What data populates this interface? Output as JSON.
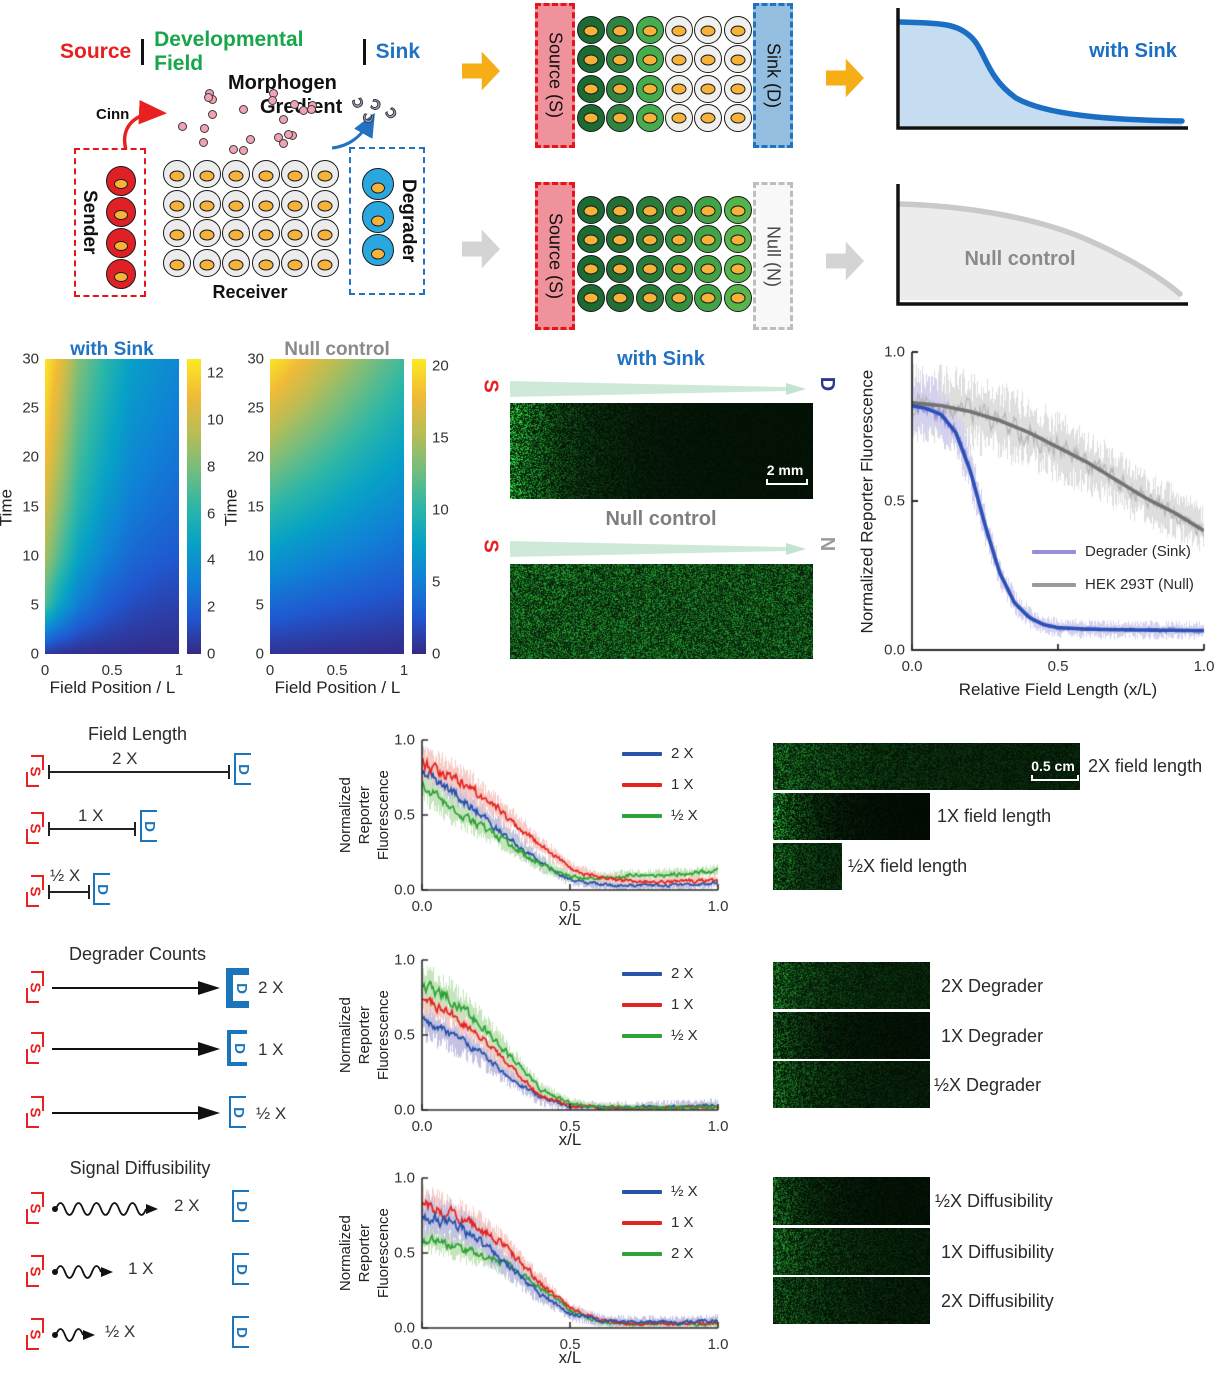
{
  "header": {
    "source": "Source",
    "field": "Developmental Field",
    "sink": "Sink",
    "source_color": "#e8201f",
    "field_color": "#17a64a",
    "sink_color": "#2272c3"
  },
  "schematic": {
    "morphogen_line1": "Morphogen",
    "morphogen_line2": "Gredient",
    "cinn": "Cinn",
    "sender": "Sender",
    "receiver": "Receiver",
    "degrader": "Degrader",
    "morphogen_dot_count": 22,
    "degrader_particle_count": 4,
    "sender_cell_count": 4,
    "degrader_cell_count": 3,
    "receiver_grid": {
      "cols": 6,
      "rows": 4
    }
  },
  "assay": {
    "rows": [
      {
        "source": "Source (S)",
        "right": "Sink (D)",
        "right_style": "sink",
        "cell_colors": [
          "#1b6b33",
          "#2e8440",
          "#46ad4e",
          "#f0f0ee",
          "#f0f0ee",
          "#f0f0ee"
        ]
      },
      {
        "source": "Source (S)",
        "right": "Null (N)",
        "right_style": "null",
        "cell_colors": [
          "#1b6b33",
          "#226f35",
          "#2a7c3a",
          "#349040",
          "#42a246",
          "#55b44c"
        ]
      }
    ]
  },
  "sketch": {
    "with_sink": "with Sink",
    "null_control": "Null control"
  },
  "microscopy": {
    "panels": [
      {
        "title": "with Sink",
        "left": "S",
        "right": "D",
        "scalebar": "2 mm"
      },
      {
        "title": "Null control",
        "left": "S",
        "right": "N",
        "scalebar": ""
      }
    ]
  },
  "sections": [
    {
      "title": "Field Length",
      "rows": [
        "2 X",
        "1 X",
        "½ X"
      ],
      "images": [
        {
          "label": "2X field length",
          "scalebar": "0.5 cm"
        },
        {
          "label": "1X field length",
          "scalebar": ""
        },
        {
          "label": "½X field length",
          "scalebar": ""
        }
      ]
    },
    {
      "title": "Degrader Counts",
      "rows": [
        "2 X",
        "1 X",
        "½ X"
      ],
      "images": [
        {
          "label": "2X Degrader",
          "scalebar": ""
        },
        {
          "label": "1X Degrader",
          "scalebar": ""
        },
        {
          "label": "½X Degrader",
          "scalebar": ""
        }
      ]
    },
    {
      "title": "Signal Diffusibility",
      "rows": [
        "2 X",
        "1 X",
        "½ X"
      ],
      "images": [
        {
          "label": "½X Diffusibility",
          "scalebar": ""
        },
        {
          "label": "1X Diffusibility",
          "scalebar": ""
        },
        {
          "label": "2X Diffusibility",
          "scalebar": ""
        }
      ]
    }
  ],
  "chart_data": [
    {
      "type": "heatmap",
      "title": "with Sink",
      "xlabel": "Field Position / L",
      "ylabel": "Time",
      "xticks": [
        "0",
        "0.5",
        "1"
      ],
      "yticks": [
        "0",
        "5",
        "10",
        "15",
        "20",
        "25",
        "30"
      ],
      "colorbar_ticks": [
        "0",
        "2",
        "4",
        "6",
        "8",
        "10",
        "12"
      ],
      "xlim": [
        0,
        1
      ],
      "ylim": [
        0,
        30
      ],
      "vmax": 12.6,
      "colormap": "parula",
      "x": [
        0,
        0.1,
        0.25,
        0.45,
        0.65,
        0.85,
        1
      ],
      "t": [
        0,
        5,
        10,
        15,
        20,
        25,
        30
      ],
      "values": [
        [
          0.5,
          0.3,
          0.2,
          0.15,
          0.1,
          0.1,
          0.1
        ],
        [
          7.0,
          5.0,
          3.0,
          1.8,
          1.2,
          0.9,
          0.8
        ],
        [
          9.0,
          7.2,
          4.8,
          3.2,
          2.2,
          1.8,
          1.6
        ],
        [
          10.2,
          8.4,
          6.0,
          4.2,
          3.0,
          2.5,
          2.2
        ],
        [
          11.2,
          9.4,
          6.8,
          5.0,
          3.6,
          3.0,
          2.7
        ],
        [
          11.9,
          10.2,
          7.5,
          5.6,
          4.1,
          3.5,
          3.1
        ],
        [
          12.5,
          11.0,
          8.2,
          6.2,
          4.6,
          3.9,
          3.5
        ]
      ]
    },
    {
      "type": "heatmap",
      "title": "Null control",
      "xlabel": "Field Position / L",
      "ylabel": "Time",
      "xticks": [
        "0",
        "0.5",
        "1"
      ],
      "yticks": [
        "0",
        "5",
        "10",
        "15",
        "20",
        "25",
        "30"
      ],
      "colorbar_ticks": [
        "0",
        "5",
        "10",
        "15",
        "20"
      ],
      "xlim": [
        0,
        1
      ],
      "ylim": [
        0,
        30
      ],
      "vmax": 20.5,
      "colormap": "parula",
      "x": [
        0,
        0.2,
        0.4,
        0.6,
        0.8,
        1
      ],
      "t": [
        0,
        5,
        10,
        15,
        20,
        25,
        30
      ],
      "values": [
        [
          0.5,
          0.4,
          0.3,
          0.2,
          0.2,
          0.1
        ],
        [
          3.6,
          3.2,
          2.8,
          2.5,
          2.2,
          1.9
        ],
        [
          7.0,
          6.2,
          5.5,
          4.9,
          4.3,
          3.8
        ],
        [
          10.4,
          9.3,
          8.3,
          7.3,
          6.4,
          5.6
        ],
        [
          13.7,
          12.3,
          11.0,
          9.7,
          8.5,
          7.4
        ],
        [
          17.0,
          15.3,
          13.7,
          12.1,
          10.6,
          9.2
        ],
        [
          20.3,
          18.3,
          16.3,
          14.5,
          12.7,
          11.0
        ]
      ]
    },
    {
      "type": "line",
      "seed": 42,
      "xlabel": "Relative Field Length (x/L)",
      "ylabel": "Normalized Reporter Fluorescence",
      "xlim": [
        0,
        1
      ],
      "ylim": [
        0,
        1
      ],
      "xticks": [
        "0.0",
        "0.5",
        "1.0"
      ],
      "yticks": [
        "0.0",
        "0.5",
        "1.0"
      ],
      "series": [
        {
          "name": "HEK 293T (Null)",
          "legend_row": 1,
          "color": "#737373",
          "noise_color": "#b8b8b8",
          "band_color": "#dedede",
          "legend_color": "#9a9a9a",
          "smooth": true,
          "band_amp": 0.12,
          "line_amp": 0.05,
          "x": [
            0,
            0.1,
            0.2,
            0.3,
            0.4,
            0.5,
            0.6,
            0.7,
            0.8,
            0.9,
            1.0
          ],
          "y": [
            0.83,
            0.82,
            0.8,
            0.77,
            0.73,
            0.68,
            0.63,
            0.57,
            0.51,
            0.46,
            0.4
          ]
        },
        {
          "name": "Degrader (Sink)",
          "legend_row": 0,
          "color": "#2b50b5",
          "noise_color": "#9690d8",
          "band_color": "#d4d1ef",
          "legend_color": "#9690d8",
          "smooth": true,
          "band_amp": 0.1,
          "line_amp": 0.035,
          "x": [
            0,
            0.05,
            0.1,
            0.15,
            0.2,
            0.25,
            0.3,
            0.35,
            0.4,
            0.45,
            0.5,
            0.6,
            0.7,
            0.8,
            0.9,
            1.0
          ],
          "y": [
            0.82,
            0.81,
            0.79,
            0.73,
            0.6,
            0.42,
            0.26,
            0.16,
            0.11,
            0.085,
            0.075,
            0.07,
            0.068,
            0.067,
            0.066,
            0.065
          ]
        }
      ]
    },
    {
      "type": "line",
      "seed": 7,
      "xlabel": "x/L",
      "ylabel": "Normalized\nReporter\nFluorescence",
      "xlim": [
        0,
        1
      ],
      "ylim": [
        0,
        1
      ],
      "xticks": [
        "0.0",
        "0.5",
        "1.0"
      ],
      "yticks": [
        "0.0",
        "0.5",
        "1.0"
      ],
      "series": [
        {
          "name": "2 X",
          "legend_row": 0,
          "color": "#2953a8",
          "band_color": "#c3c2e2",
          "band_amp": 0.14,
          "line_amp": 0.05,
          "x": [
            0,
            0.1,
            0.2,
            0.3,
            0.4,
            0.5,
            0.6,
            0.7,
            0.8,
            0.9,
            1.0
          ],
          "y": [
            0.8,
            0.66,
            0.5,
            0.34,
            0.18,
            0.07,
            0.035,
            0.03,
            0.03,
            0.035,
            0.05
          ]
        },
        {
          "name": "½ X",
          "legend_row": 2,
          "color": "#2fa337",
          "band_color": "#c6e5bc",
          "band_amp": 0.13,
          "line_amp": 0.05,
          "x": [
            0,
            0.1,
            0.2,
            0.3,
            0.4,
            0.5,
            0.6,
            0.7,
            0.8,
            0.9,
            1.0
          ],
          "y": [
            0.7,
            0.54,
            0.42,
            0.3,
            0.17,
            0.09,
            0.08,
            0.095,
            0.1,
            0.11,
            0.13
          ]
        },
        {
          "name": "1 X",
          "legend_row": 1,
          "color": "#e22521",
          "band_color": "#f7cbc6",
          "band_amp": 0.12,
          "line_amp": 0.05,
          "x": [
            0,
            0.1,
            0.2,
            0.3,
            0.4,
            0.5,
            0.6,
            0.7,
            0.8,
            0.9,
            1.0
          ],
          "y": [
            0.85,
            0.76,
            0.63,
            0.47,
            0.3,
            0.15,
            0.08,
            0.06,
            0.055,
            0.06,
            0.065
          ]
        }
      ]
    },
    {
      "type": "line",
      "seed": 13,
      "xlabel": "x/L",
      "ylabel": "Normalized\nReporter\nFluorescence",
      "xlim": [
        0,
        1
      ],
      "ylim": [
        0,
        1
      ],
      "xticks": [
        "0.0",
        "0.5",
        "1.0"
      ],
      "yticks": [
        "0.0",
        "0.5",
        "1.0"
      ],
      "series": [
        {
          "name": "2 X",
          "legend_row": 0,
          "color": "#2953a8",
          "band_color": "#c3c2e2",
          "band_amp": 0.17,
          "line_amp": 0.05,
          "x": [
            0,
            0.1,
            0.2,
            0.3,
            0.4,
            0.5,
            0.6,
            0.7,
            0.8,
            0.9,
            1.0
          ],
          "y": [
            0.6,
            0.5,
            0.38,
            0.22,
            0.08,
            0.025,
            0.015,
            0.015,
            0.02,
            0.025,
            0.035
          ]
        },
        {
          "name": "1 X",
          "legend_row": 1,
          "color": "#e22521",
          "band_color": "#f7cbc6",
          "band_amp": 0.11,
          "line_amp": 0.05,
          "x": [
            0,
            0.1,
            0.2,
            0.3,
            0.4,
            0.5,
            0.6,
            0.7,
            0.8,
            0.9,
            1.0
          ],
          "y": [
            0.74,
            0.64,
            0.48,
            0.28,
            0.1,
            0.03,
            0.015,
            0.012,
            0.012,
            0.015,
            0.02
          ]
        },
        {
          "name": "½ X",
          "legend_row": 2,
          "color": "#2fa337",
          "band_color": "#c6e5bc",
          "band_amp": 0.13,
          "line_amp": 0.05,
          "x": [
            0,
            0.1,
            0.2,
            0.3,
            0.4,
            0.5,
            0.6,
            0.7,
            0.8,
            0.9,
            1.0
          ],
          "y": [
            0.84,
            0.74,
            0.57,
            0.35,
            0.14,
            0.045,
            0.02,
            0.015,
            0.015,
            0.015,
            0.02
          ]
        }
      ]
    },
    {
      "type": "line",
      "seed": 29,
      "xlabel": "x/L",
      "ylabel": "Normalized\nReporter\nFluorescence",
      "xlim": [
        0,
        1
      ],
      "ylim": [
        0,
        1
      ],
      "xticks": [
        "0.0",
        "0.5",
        "1.0"
      ],
      "yticks": [
        "0.0",
        "0.5",
        "1.0"
      ],
      "series": [
        {
          "name": "2 X",
          "legend_row": 2,
          "color": "#2fa337",
          "band_color": "#c6e5bc",
          "band_amp": 0.12,
          "line_amp": 0.05,
          "x": [
            0,
            0.1,
            0.2,
            0.3,
            0.4,
            0.5,
            0.6,
            0.7,
            0.8,
            0.9,
            1.0
          ],
          "y": [
            0.6,
            0.55,
            0.49,
            0.4,
            0.27,
            0.12,
            0.04,
            0.025,
            0.025,
            0.025,
            0.03
          ]
        },
        {
          "name": "1 X",
          "legend_row": 1,
          "color": "#e22521",
          "band_color": "#f7cbc6",
          "band_amp": 0.12,
          "line_amp": 0.05,
          "x": [
            0,
            0.1,
            0.2,
            0.3,
            0.4,
            0.5,
            0.6,
            0.7,
            0.8,
            0.9,
            1.0
          ],
          "y": [
            0.82,
            0.76,
            0.66,
            0.5,
            0.3,
            0.13,
            0.05,
            0.03,
            0.03,
            0.03,
            0.035
          ]
        },
        {
          "name": "½ X",
          "legend_row": 0,
          "color": "#2953a8",
          "band_color": "#c3c2e2",
          "band_amp": 0.15,
          "line_amp": 0.05,
          "x": [
            0,
            0.1,
            0.2,
            0.3,
            0.4,
            0.5,
            0.6,
            0.7,
            0.8,
            0.9,
            1.0
          ],
          "y": [
            0.74,
            0.7,
            0.58,
            0.4,
            0.22,
            0.1,
            0.05,
            0.04,
            0.04,
            0.04,
            0.05
          ]
        }
      ]
    }
  ]
}
